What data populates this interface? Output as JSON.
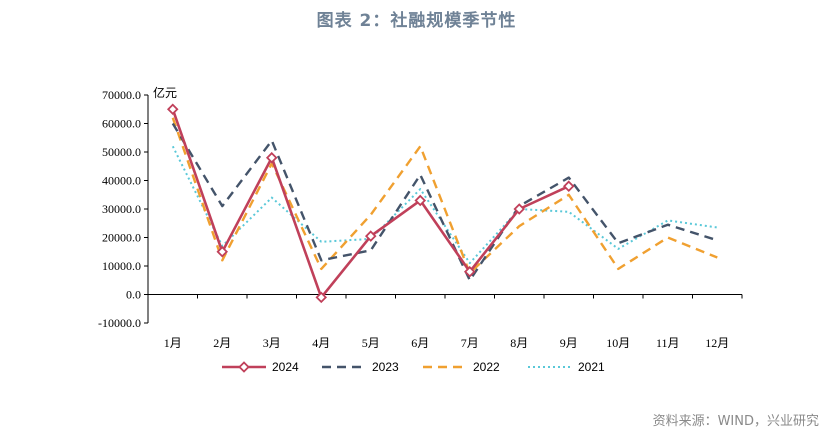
{
  "title": "图表 2：社融规模季节性",
  "source": "资料来源：WIND，兴业研究",
  "chart_data": {
    "type": "line",
    "unit_label": "亿元",
    "categories": [
      "1月",
      "2月",
      "3月",
      "4月",
      "5月",
      "6月",
      "7月",
      "8月",
      "9月",
      "10月",
      "11月",
      "12月"
    ],
    "ylim": [
      -10000,
      70000
    ],
    "yticks": [
      "-10000.0",
      "0.0",
      "10000.0",
      "20000.0",
      "30000.0",
      "40000.0",
      "50000.0",
      "60000.0",
      "70000.0"
    ],
    "ytick_values": [
      -10000,
      0,
      10000,
      20000,
      30000,
      40000,
      50000,
      60000,
      70000
    ],
    "grid": false,
    "legend_position": "bottom",
    "series": [
      {
        "name": "2024",
        "color": "#c0405a",
        "style": "solid-marker",
        "values": [
          65000,
          15000,
          48000,
          -1000,
          20500,
          33000,
          8000,
          30000,
          38000,
          null,
          null,
          null
        ]
      },
      {
        "name": "2023",
        "color": "#44546a",
        "style": "dashed",
        "values": [
          60000,
          31000,
          54000,
          12000,
          15500,
          42000,
          5000,
          31000,
          41000,
          18000,
          24500,
          19000
        ]
      },
      {
        "name": "2022",
        "color": "#f0a030",
        "style": "dashed",
        "values": [
          62000,
          12000,
          46000,
          9000,
          28000,
          52000,
          7500,
          24000,
          35000,
          9000,
          20000,
          13000
        ]
      },
      {
        "name": "2021",
        "color": "#5ac8d8",
        "style": "dotted",
        "values": [
          52000,
          17000,
          34000,
          18500,
          19500,
          37000,
          11000,
          30000,
          29000,
          16000,
          26000,
          23500
        ]
      }
    ]
  }
}
